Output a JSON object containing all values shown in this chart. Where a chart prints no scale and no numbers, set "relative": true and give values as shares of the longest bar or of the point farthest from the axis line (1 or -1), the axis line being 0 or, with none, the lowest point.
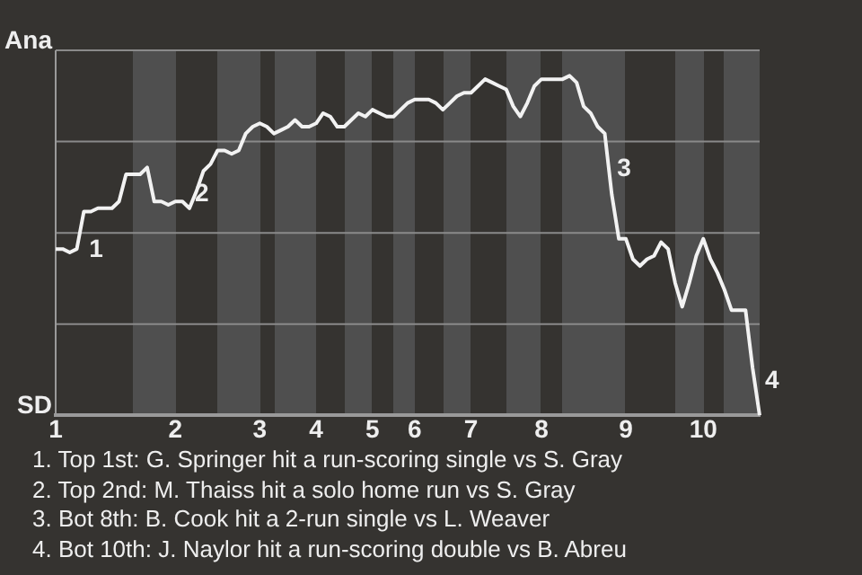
{
  "chart_data": {
    "type": "line",
    "relative": true,
    "categories": [
      "1",
      null,
      null,
      null,
      null,
      null,
      null,
      null,
      null,
      null,
      null,
      null,
      null,
      null,
      null,
      null,
      null,
      "2",
      null,
      null,
      null,
      null,
      null,
      null,
      null,
      null,
      null,
      null,
      null,
      "3",
      null,
      null,
      null,
      null,
      null,
      null,
      null,
      "4",
      null,
      null,
      null,
      null,
      null,
      null,
      null,
      "5",
      null,
      null,
      null,
      null,
      null,
      "6",
      null,
      null,
      null,
      null,
      null,
      null,
      null,
      "7",
      null,
      null,
      null,
      null,
      null,
      null,
      null,
      null,
      null,
      "8",
      null,
      null,
      null,
      null,
      null,
      null,
      null,
      null,
      null,
      null,
      null,
      "9",
      null,
      null,
      null,
      null,
      null,
      null,
      null,
      null,
      null,
      null,
      "10",
      null,
      null,
      null,
      null,
      null,
      null,
      null,
      null
    ],
    "series": [
      {
        "color": "#f2f2f2",
        "values": [
          0.49,
          0.49,
          0.48,
          0.49,
          0.6,
          0.6,
          0.61,
          0.61,
          0.61,
          0.63,
          0.71,
          0.71,
          0.71,
          0.73,
          0.63,
          0.63,
          0.62,
          0.63,
          0.63,
          0.61,
          0.66,
          0.72,
          0.74,
          0.78,
          0.78,
          0.77,
          0.78,
          0.83,
          0.85,
          0.86,
          0.85,
          0.83,
          0.84,
          0.85,
          0.87,
          0.85,
          0.85,
          0.86,
          0.89,
          0.88,
          0.85,
          0.85,
          0.87,
          0.89,
          0.88,
          0.9,
          0.89,
          0.88,
          0.88,
          0.9,
          0.92,
          0.93,
          0.93,
          0.93,
          0.92,
          0.9,
          0.92,
          0.94,
          0.95,
          0.95,
          0.97,
          0.99,
          0.98,
          0.97,
          0.96,
          0.91,
          0.88,
          0.92,
          0.97,
          0.99,
          0.99,
          0.99,
          0.99,
          1,
          0.98,
          0.91,
          0.89,
          0.85,
          0.83,
          0.65,
          0.52,
          0.52,
          0.46,
          0.44,
          0.46,
          0.47,
          0.51,
          0.49,
          0.39,
          0.32,
          0.39,
          0.47,
          0.52,
          0.46,
          0.42,
          0.37,
          0.31,
          0.31,
          0.31,
          0.14,
          0
        ]
      }
    ],
    "grid": "y",
    "marker": "none",
    "line_style": "solid",
    "annotations": [
      "Ana",
      "SD",
      "1",
      "2",
      "3",
      "4",
      "1. Top 1st: G. Springer hit a run-scoring single vs S. Gray",
      "2. Top 2nd: M. Thaiss hit a solo home run vs S. Gray",
      "3. Bot 8th: B. Cook hit a 2-run single vs L. Weaver",
      "4. Bot 10th: J. Naylor hit a run-scoring double vs B. Abreu"
    ]
  }
}
